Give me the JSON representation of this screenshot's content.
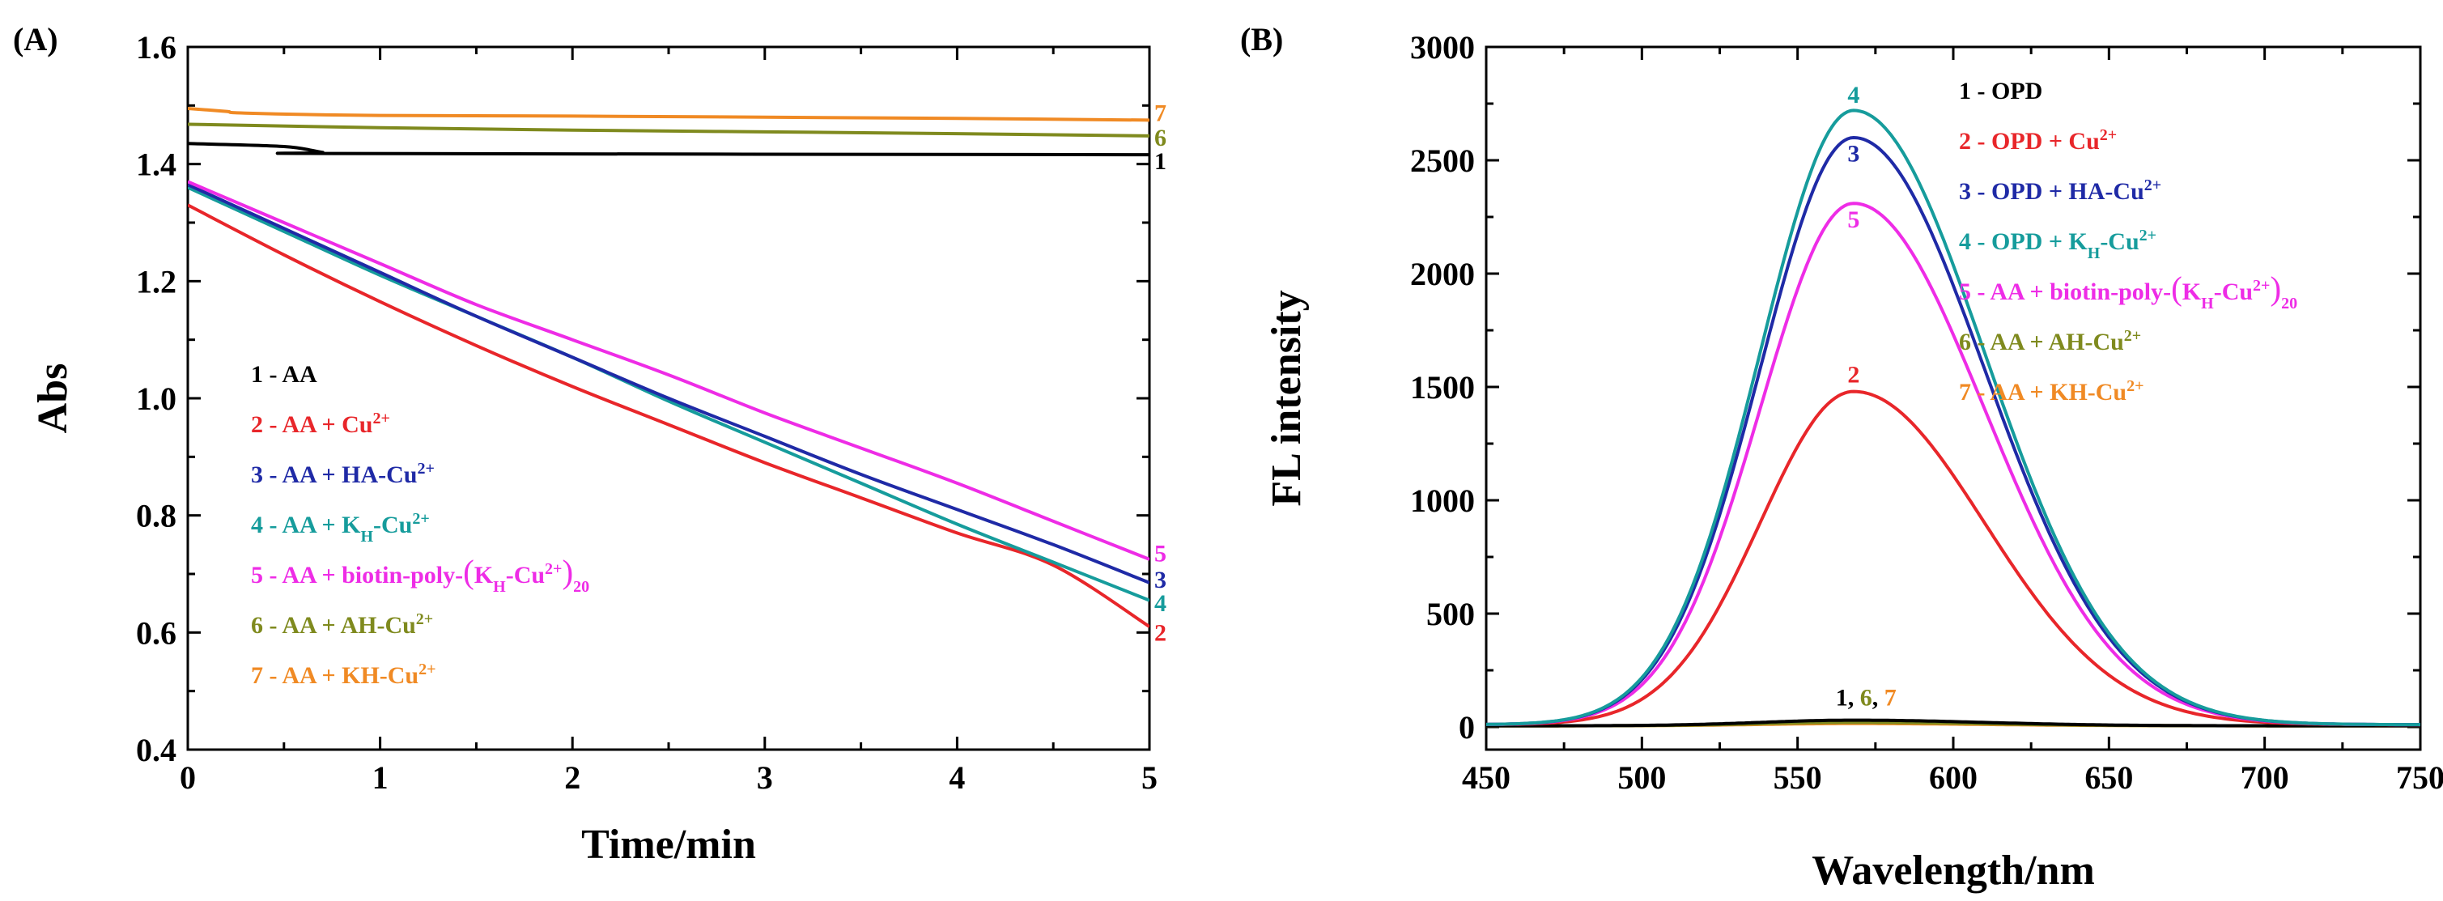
{
  "chart_data": [
    {
      "panel_label": "(A)",
      "type": "line",
      "xlabel": "Time/min",
      "ylabel": "Abs",
      "xlim": [
        0,
        5
      ],
      "ylim": [
        0.4,
        1.6
      ],
      "xticks": [
        {
          "value": 0,
          "label": "0"
        },
        {
          "value": 1,
          "label": "1"
        },
        {
          "value": 2,
          "label": "2"
        },
        {
          "value": 3,
          "label": "3"
        },
        {
          "value": 4,
          "label": "4"
        },
        {
          "value": 5,
          "label": "5"
        }
      ],
      "yticks": [
        {
          "value": 0.4,
          "label": "0.4"
        },
        {
          "value": 0.6,
          "label": "0.6"
        },
        {
          "value": 0.8,
          "label": "0.8"
        },
        {
          "value": 1.0,
          "label": "1.0"
        },
        {
          "value": 1.2,
          "label": "1.2"
        },
        {
          "value": 1.4,
          "label": "1.4"
        },
        {
          "value": 1.6,
          "label": "1.6"
        }
      ],
      "series": [
        {
          "id": "1",
          "label": "1 - AA",
          "color": "#000000",
          "x": [
            0,
            0.5,
            0.7,
            0.8,
            5
          ],
          "y": [
            1.435,
            1.43,
            1.42,
            1.418,
            1.416
          ]
        },
        {
          "id": "2",
          "label": "2 - AA + Cu2+",
          "color": "#e8262a",
          "x": [
            0,
            0.5,
            1,
            1.5,
            2,
            2.5,
            3,
            3.5,
            4,
            4.5,
            5
          ],
          "y": [
            1.33,
            1.245,
            1.165,
            1.09,
            1.02,
            0.955,
            0.89,
            0.83,
            0.77,
            0.715,
            0.61
          ]
        },
        {
          "id": "3",
          "label": "3 - AA + HA-Cu2+",
          "color": "#1f2aa6",
          "x": [
            0,
            0.5,
            1,
            1.5,
            2,
            2.5,
            3,
            3.5,
            4,
            4.5,
            5
          ],
          "y": [
            1.365,
            1.29,
            1.215,
            1.14,
            1.07,
            1.0,
            0.935,
            0.87,
            0.81,
            0.75,
            0.685
          ]
        },
        {
          "id": "4",
          "label": "4 - AA + KH-Cu2+",
          "color": "#169c9c",
          "x": [
            0,
            0.5,
            1,
            1.5,
            2,
            2.5,
            3,
            3.5,
            4,
            4.5,
            5
          ],
          "y": [
            1.36,
            1.285,
            1.21,
            1.14,
            1.07,
            0.995,
            0.925,
            0.855,
            0.785,
            0.72,
            0.655
          ]
        },
        {
          "id": "5",
          "label": "5 - AA + biotin-poly-(KH-Cu2+)20",
          "color": "#ee2ce6",
          "x": [
            0,
            0.5,
            1,
            1.5,
            2,
            2.5,
            3,
            3.5,
            4,
            4.5,
            5
          ],
          "y": [
            1.37,
            1.3,
            1.23,
            1.16,
            1.1,
            1.04,
            0.975,
            0.915,
            0.855,
            0.79,
            0.725
          ]
        },
        {
          "id": "6",
          "label": "6 - AA + AH-Cu2+",
          "color": "#7f8a1e",
          "x": [
            0,
            1,
            2,
            3,
            4,
            5
          ],
          "y": [
            1.468,
            1.462,
            1.458,
            1.455,
            1.452,
            1.448
          ]
        },
        {
          "id": "7",
          "label": "7 - AA + KH-Cu2+",
          "color": "#f08a24",
          "x": [
            0,
            0.2,
            0.3,
            1,
            2,
            3,
            4,
            5
          ],
          "y": [
            1.495,
            1.49,
            1.487,
            1.483,
            1.482,
            1.48,
            1.478,
            1.475
          ]
        }
      ],
      "curve_end_labels": [
        {
          "id": "7",
          "text": "7",
          "x": 5.07,
          "y": 1.487,
          "color": "#f08a24"
        },
        {
          "id": "6",
          "text": "6",
          "x": 5.07,
          "y": 1.445,
          "color": "#7f8a1e"
        },
        {
          "id": "1",
          "text": "1",
          "x": 5.07,
          "y": 1.405,
          "color": "#000000"
        },
        {
          "id": "5",
          "text": "5",
          "x": 5.07,
          "y": 0.735,
          "color": "#ee2ce6"
        },
        {
          "id": "3",
          "text": "3",
          "x": 5.07,
          "y": 0.69,
          "color": "#1f2aa6"
        },
        {
          "id": "4",
          "text": "4",
          "x": 5.07,
          "y": 0.65,
          "color": "#169c9c"
        },
        {
          "id": "2",
          "text": "2",
          "x": 5.07,
          "y": 0.6,
          "color": "#e8262a"
        }
      ],
      "legend": [
        {
          "parts": [
            {
              "t": "1 - AA"
            }
          ],
          "color": "#000000"
        },
        {
          "parts": [
            {
              "t": "2 - AA + Cu"
            },
            {
              "t": "2+",
              "sup": true
            }
          ],
          "color": "#e8262a"
        },
        {
          "parts": [
            {
              "t": "3 - AA + HA-Cu"
            },
            {
              "t": "2+",
              "sup": true
            }
          ],
          "color": "#1f2aa6"
        },
        {
          "parts": [
            {
              "t": "4 - AA + K"
            },
            {
              "t": "H",
              "sub": true
            },
            {
              "t": "-Cu"
            },
            {
              "t": "2+",
              "sup": true
            }
          ],
          "color": "#169c9c"
        },
        {
          "parts": [
            {
              "t": "5 - AA + biotin-poly-"
            },
            {
              "t": "(",
              "big": true
            },
            {
              "t": "K"
            },
            {
              "t": "H",
              "sub": true
            },
            {
              "t": "-Cu"
            },
            {
              "t": "2+",
              "sup": true
            },
            {
              "t": ")",
              "big": true
            },
            {
              "t": "20",
              "sub": true
            }
          ],
          "color": "#ee2ce6"
        },
        {
          "parts": [
            {
              "t": "6 - AA + AH-Cu"
            },
            {
              "t": "2+",
              "sup": true
            }
          ],
          "color": "#7f8a1e"
        },
        {
          "parts": [
            {
              "t": "7 - AA + KH-Cu"
            },
            {
              "t": "2+",
              "sup": true
            }
          ],
          "color": "#f08a24"
        }
      ]
    },
    {
      "panel_label": "(B)",
      "type": "line",
      "xlabel": "Wavelength/nm",
      "ylabel": "FL intensity",
      "xlim": [
        450,
        750
      ],
      "ylim": [
        -100,
        3000
      ],
      "xticks": [
        {
          "value": 450,
          "label": "450"
        },
        {
          "value": 500,
          "label": "500"
        },
        {
          "value": 550,
          "label": "550"
        },
        {
          "value": 600,
          "label": "600"
        },
        {
          "value": 650,
          "label": "650"
        },
        {
          "value": 700,
          "label": "700"
        },
        {
          "value": 750,
          "label": "750"
        }
      ],
      "yticks": [
        {
          "value": 0,
          "label": "0"
        },
        {
          "value": 500,
          "label": "500"
        },
        {
          "value": 1000,
          "label": "1000"
        },
        {
          "value": 1500,
          "label": "1500"
        },
        {
          "value": 2000,
          "label": "2000"
        },
        {
          "value": 2500,
          "label": "2500"
        },
        {
          "value": 3000,
          "label": "3000"
        }
      ],
      "series": [
        {
          "id": "1",
          "label": "1 - OPD",
          "color": "#000000",
          "peak_x": 568,
          "peak_y": 30,
          "baseline": 5
        },
        {
          "id": "2",
          "label": "2 - OPD + Cu2+",
          "color": "#e8262a",
          "peak_x": 568,
          "peak_y": 1480,
          "baseline": 10
        },
        {
          "id": "3",
          "label": "3 - OPD + HA-Cu2+",
          "color": "#1f2aa6",
          "peak_x": 568,
          "peak_y": 2600,
          "baseline": 10
        },
        {
          "id": "4",
          "label": "4 - OPD + KH-Cu2+",
          "color": "#169c9c",
          "peak_x": 568,
          "peak_y": 2720,
          "baseline": 10
        },
        {
          "id": "5",
          "label": "5 - AA + biotin-poly-(KH-Cu2+)20",
          "color": "#ee2ce6",
          "peak_x": 568,
          "peak_y": 2310,
          "baseline": 10
        },
        {
          "id": "6",
          "label": "6 - AA + AH-Cu2+",
          "color": "#7f8a1e",
          "peak_x": 568,
          "peak_y": 20,
          "baseline": 5
        },
        {
          "id": "7",
          "label": "7 - AA + KH-Cu2+",
          "color": "#f08a24",
          "peak_x": 568,
          "peak_y": 15,
          "baseline": 5
        }
      ],
      "peak_labels": [
        {
          "id": "4",
          "text": "4",
          "x": 568,
          "y": 2790,
          "color": "#169c9c"
        },
        {
          "id": "3",
          "text": "3",
          "x": 568,
          "y": 2530,
          "color": "#1f2aa6"
        },
        {
          "id": "5",
          "text": "5",
          "x": 568,
          "y": 2240,
          "color": "#ee2ce6"
        },
        {
          "id": "2",
          "text": "2",
          "x": 568,
          "y": 1555,
          "color": "#e8262a"
        }
      ],
      "baseline_label": [
        {
          "t": "1",
          "color": "#000000"
        },
        {
          "t": ", ",
          "color": "#000000"
        },
        {
          "t": "6",
          "color": "#7f8a1e"
        },
        {
          "t": ", ",
          "color": "#000000"
        },
        {
          "t": "7",
          "color": "#f08a24"
        }
      ],
      "baseline_label_pos": {
        "x": 572,
        "y": 95
      },
      "legend": [
        {
          "parts": [
            {
              "t": "1 - OPD"
            }
          ],
          "color": "#000000"
        },
        {
          "parts": [
            {
              "t": "2 - OPD + Cu"
            },
            {
              "t": "2+",
              "sup": true
            }
          ],
          "color": "#e8262a"
        },
        {
          "parts": [
            {
              "t": "3 - OPD + HA-Cu"
            },
            {
              "t": "2+",
              "sup": true
            }
          ],
          "color": "#1f2aa6"
        },
        {
          "parts": [
            {
              "t": "4 - OPD + K"
            },
            {
              "t": "H",
              "sub": true
            },
            {
              "t": "-Cu"
            },
            {
              "t": "2+",
              "sup": true
            }
          ],
          "color": "#169c9c"
        },
        {
          "parts": [
            {
              "t": "5 - AA + biotin-poly-"
            },
            {
              "t": "(",
              "big": true
            },
            {
              "t": "K"
            },
            {
              "t": "H",
              "sub": true
            },
            {
              "t": "-Cu"
            },
            {
              "t": "2+",
              "sup": true
            },
            {
              "t": ")",
              "big": true
            },
            {
              "t": "20",
              "sub": true
            }
          ],
          "color": "#ee2ce6"
        },
        {
          "parts": [
            {
              "t": "6 - AA + AH-Cu"
            },
            {
              "t": "2+",
              "sup": true
            }
          ],
          "color": "#7f8a1e"
        },
        {
          "parts": [
            {
              "t": "7 - AA + KH-Cu"
            },
            {
              "t": "2+",
              "sup": true
            }
          ],
          "color": "#f08a24"
        }
      ]
    }
  ]
}
